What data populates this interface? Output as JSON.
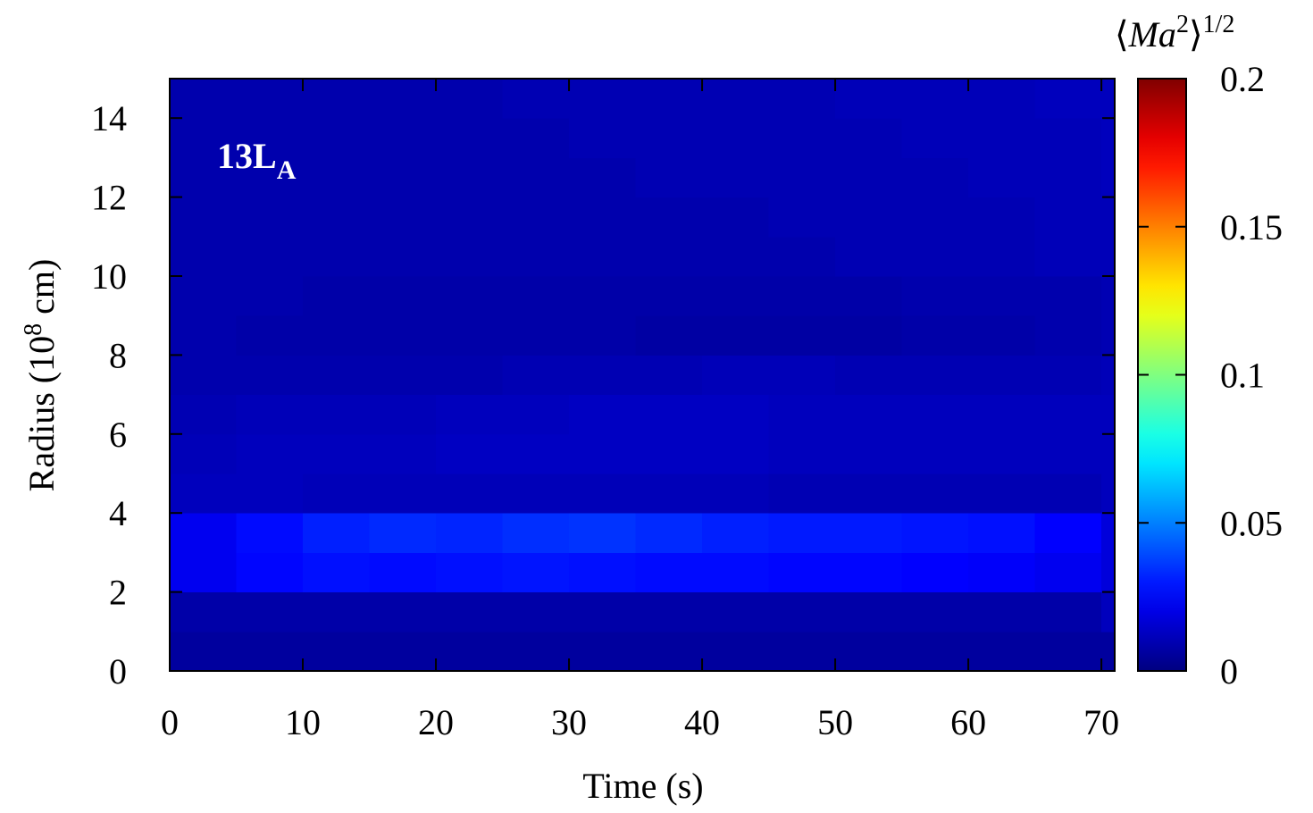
{
  "chart_data": {
    "type": "heatmap",
    "xlabel": "Time (s)",
    "ylabel": [
      "Radius (10",
      "8",
      " cm)"
    ],
    "zlabel": [
      "⟨",
      "Ma",
      "2",
      "⟩",
      "1/2"
    ],
    "annotation": [
      "13L",
      "A"
    ],
    "colormap": "jet",
    "xlim": [
      0,
      71
    ],
    "xticks": [
      0,
      10,
      20,
      30,
      40,
      50,
      60,
      70
    ],
    "ylim": [
      0,
      15
    ],
    "yticks": [
      0,
      2,
      4,
      6,
      8,
      10,
      12,
      14
    ],
    "zlim": [
      0,
      0.2
    ],
    "zticks": [
      0,
      0.05,
      0.1,
      0.15,
      0.2
    ],
    "x_bins": [
      0,
      5,
      10,
      15,
      20,
      25,
      30,
      35,
      40,
      45,
      50,
      55,
      60,
      65,
      70,
      71
    ],
    "y_bins": [
      0,
      1,
      2,
      3,
      4,
      5,
      6,
      7,
      8,
      9,
      10,
      11,
      12,
      13,
      14,
      15
    ],
    "z": [
      [
        0.006,
        0.006,
        0.006,
        0.006,
        0.006,
        0.006,
        0.006,
        0.006,
        0.006,
        0.006,
        0.006,
        0.006,
        0.006,
        0.006,
        0.006
      ],
      [
        0.008,
        0.008,
        0.008,
        0.008,
        0.008,
        0.008,
        0.008,
        0.008,
        0.008,
        0.008,
        0.008,
        0.008,
        0.008,
        0.008,
        0.012
      ],
      [
        0.022,
        0.026,
        0.028,
        0.027,
        0.028,
        0.029,
        0.028,
        0.027,
        0.027,
        0.026,
        0.026,
        0.025,
        0.024,
        0.022,
        0.018
      ],
      [
        0.022,
        0.027,
        0.031,
        0.033,
        0.032,
        0.034,
        0.035,
        0.033,
        0.031,
        0.03,
        0.03,
        0.029,
        0.028,
        0.025,
        0.018
      ],
      [
        0.012,
        0.012,
        0.011,
        0.011,
        0.011,
        0.011,
        0.011,
        0.011,
        0.011,
        0.01,
        0.01,
        0.01,
        0.01,
        0.01,
        0.012
      ],
      [
        0.011,
        0.012,
        0.012,
        0.012,
        0.013,
        0.013,
        0.013,
        0.013,
        0.013,
        0.012,
        0.012,
        0.012,
        0.012,
        0.012,
        0.012
      ],
      [
        0.01,
        0.011,
        0.011,
        0.011,
        0.012,
        0.012,
        0.013,
        0.013,
        0.013,
        0.012,
        0.012,
        0.012,
        0.012,
        0.012,
        0.012
      ],
      [
        0.009,
        0.009,
        0.009,
        0.009,
        0.009,
        0.01,
        0.01,
        0.01,
        0.011,
        0.011,
        0.01,
        0.01,
        0.01,
        0.01,
        0.011
      ],
      [
        0.009,
        0.008,
        0.008,
        0.008,
        0.008,
        0.008,
        0.008,
        0.007,
        0.007,
        0.007,
        0.007,
        0.008,
        0.008,
        0.009,
        0.01
      ],
      [
        0.009,
        0.009,
        0.008,
        0.008,
        0.008,
        0.008,
        0.008,
        0.008,
        0.008,
        0.008,
        0.008,
        0.009,
        0.009,
        0.009,
        0.01
      ],
      [
        0.009,
        0.009,
        0.009,
        0.009,
        0.009,
        0.009,
        0.009,
        0.009,
        0.009,
        0.009,
        0.01,
        0.01,
        0.01,
        0.011,
        0.011
      ],
      [
        0.009,
        0.009,
        0.009,
        0.009,
        0.009,
        0.009,
        0.009,
        0.009,
        0.009,
        0.01,
        0.01,
        0.01,
        0.01,
        0.011,
        0.011
      ],
      [
        0.009,
        0.009,
        0.009,
        0.009,
        0.009,
        0.009,
        0.009,
        0.01,
        0.01,
        0.01,
        0.01,
        0.01,
        0.011,
        0.011,
        0.012
      ],
      [
        0.009,
        0.009,
        0.009,
        0.009,
        0.009,
        0.009,
        0.01,
        0.01,
        0.01,
        0.01,
        0.01,
        0.011,
        0.011,
        0.011,
        0.012
      ],
      [
        0.009,
        0.009,
        0.009,
        0.009,
        0.009,
        0.01,
        0.01,
        0.01,
        0.01,
        0.01,
        0.011,
        0.011,
        0.011,
        0.012,
        0.012
      ]
    ]
  }
}
